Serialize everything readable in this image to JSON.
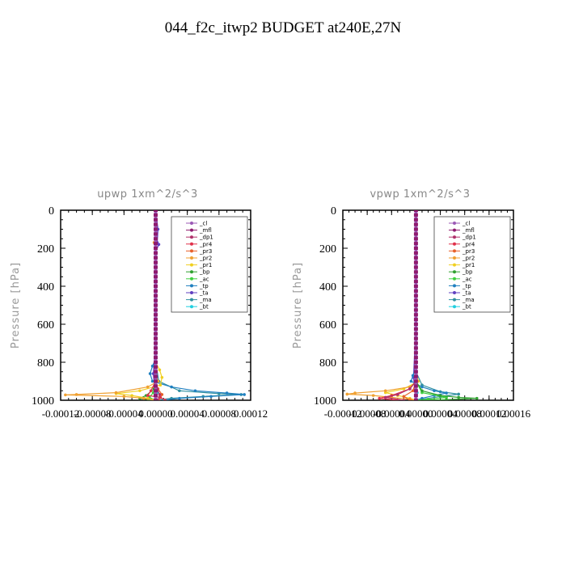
{
  "title": "044_f2c_itwp2  BUDGET at240E,27N",
  "colors": {
    "_cl": "#9b59b6",
    "_mfl": "#8e1a6e",
    "_dp1": "#b0306a",
    "_pr4": "#e0304a",
    "_pr3": "#e8602a",
    "_pr2": "#f0a030",
    "_pr1": "#f0d020",
    "_bp": "#30a030",
    "_ac": "#40d040",
    "_tp": "#2080c0",
    "_ta": "#6040c0",
    "_ma": "#3090a0",
    "_bt": "#20d0e0"
  },
  "chart_data": [
    {
      "type": "line",
      "title": "upwp   1xm^2/s^3",
      "ylabel": "Pressure [hPa]",
      "xlim": [
        -0.00012,
        0.00012
      ],
      "ylim": [
        0,
        1000
      ],
      "y_inverted": true,
      "xticks": [
        "-0.00012",
        "-0.00008",
        "-0.00004",
        "0.00000",
        "0.00004",
        "0.00008",
        "0.00012"
      ],
      "yticks": [
        "0",
        "200",
        "400",
        "600",
        "800",
        "1000"
      ],
      "legend": [
        "_cl",
        "_mfl",
        "_dp1",
        "_pr4",
        "_pr3",
        "_pr2",
        "_pr1",
        "_bp",
        "_ac",
        "_tp",
        "_ta",
        "_ma",
        "_bt"
      ],
      "legend_position": "top-right",
      "series": [
        {
          "name": "_cl",
          "points": [
            [
              0,
              0
            ],
            [
              0,
              200
            ],
            [
              0,
              400
            ],
            [
              0,
              600
            ],
            [
              0,
              800
            ],
            [
              0,
              900
            ],
            [
              0,
              960
            ],
            [
              0,
              1000
            ]
          ]
        },
        {
          "name": "_mfl",
          "points": [
            [
              0,
              0
            ],
            [
              0,
              200
            ],
            [
              0,
              400
            ],
            [
              0,
              600
            ],
            [
              0,
              800
            ],
            [
              0,
              900
            ],
            [
              0,
              960
            ],
            [
              0,
              1000
            ]
          ]
        },
        {
          "name": "_dp1",
          "points": [
            [
              0,
              0
            ],
            [
              0,
              400
            ],
            [
              0,
              800
            ],
            [
              0,
              900
            ],
            [
              2e-06,
              940
            ],
            [
              5e-06,
              970
            ],
            [
              3e-06,
              1000
            ]
          ]
        },
        {
          "name": "_pr4",
          "points": [
            [
              0,
              0
            ],
            [
              0,
              500
            ],
            [
              0,
              900
            ],
            [
              -6e-06,
              950
            ],
            [
              -1e-05,
              975
            ],
            [
              6e-06,
              985
            ],
            [
              1.2e-05,
              1000
            ]
          ]
        },
        {
          "name": "_pr3",
          "points": [
            [
              0,
              0
            ],
            [
              0,
              900
            ],
            [
              3e-06,
              940
            ],
            [
              8e-06,
              970
            ],
            [
              4e-06,
              1000
            ]
          ]
        },
        {
          "name": "_pr2",
          "points": [
            [
              0,
              0
            ],
            [
              0,
              160
            ],
            [
              -2e-06,
              170
            ],
            [
              0,
              180
            ],
            [
              0,
              860
            ],
            [
              3e-06,
              900
            ],
            [
              -1e-05,
              930
            ],
            [
              -5e-05,
              960
            ],
            [
              -0.0001,
              970
            ],
            [
              -0.000114,
              972
            ],
            [
              -4e-05,
              980
            ],
            [
              -1.5e-05,
              990
            ],
            [
              0,
              1000
            ]
          ]
        },
        {
          "name": "_pr1",
          "points": [
            [
              0,
              0
            ],
            [
              0,
              800
            ],
            [
              5e-06,
              840
            ],
            [
              8e-06,
              880
            ],
            [
              6e-06,
              920
            ],
            [
              -2e-05,
              950
            ],
            [
              -5e-05,
              965
            ],
            [
              -3e-05,
              975
            ],
            [
              -1e-05,
              990
            ],
            [
              0,
              1000
            ]
          ]
        },
        {
          "name": "_bp",
          "points": [
            [
              0,
              0
            ],
            [
              0,
              900
            ],
            [
              -2e-06,
              940
            ],
            [
              -1.2e-05,
              975
            ],
            [
              -2e-05,
              990
            ],
            [
              -5e-06,
              1000
            ]
          ]
        },
        {
          "name": "_ac",
          "points": [
            [
              0,
              0
            ],
            [
              0,
              900
            ],
            [
              -3e-06,
              960
            ],
            [
              -8e-06,
              985
            ],
            [
              0,
              1000
            ]
          ]
        },
        {
          "name": "_tp",
          "points": [
            [
              0,
              0
            ],
            [
              0,
              780
            ],
            [
              -4e-06,
              820
            ],
            [
              -7e-06,
              860
            ],
            [
              -4e-06,
              900
            ],
            [
              2e-05,
              930
            ],
            [
              5e-05,
              950
            ],
            [
              9e-05,
              962
            ],
            [
              0.000112,
              970
            ],
            [
              7e-05,
              980
            ],
            [
              3e-05,
              990
            ],
            [
              1e-05,
              1000
            ]
          ]
        },
        {
          "name": "_ta",
          "points": [
            [
              0,
              0
            ],
            [
              3e-06,
              100
            ],
            [
              2e-06,
              170
            ],
            [
              4e-06,
              180
            ],
            [
              0,
              220
            ],
            [
              0,
              700
            ],
            [
              -3e-06,
              860
            ],
            [
              0,
              1000
            ]
          ]
        },
        {
          "name": "_ma",
          "points": [
            [
              0,
              0
            ],
            [
              0,
              800
            ],
            [
              4e-06,
              900
            ],
            [
              3e-05,
              950
            ],
            [
              8e-05,
              965
            ],
            [
              0.000108,
              970
            ],
            [
              6e-05,
              980
            ],
            [
              2e-05,
              990
            ],
            [
              0,
              1000
            ]
          ]
        },
        {
          "name": "_bt",
          "points": [
            [
              0,
              0
            ],
            [
              0,
              900
            ],
            [
              2e-06,
              960
            ],
            [
              0,
              1000
            ]
          ]
        }
      ]
    },
    {
      "type": "line",
      "title": "vpwp   1xm^2/s^3",
      "ylabel": "Pressure [hPa]",
      "xlim": [
        -0.00012,
        0.00016
      ],
      "ylim": [
        0,
        1000
      ],
      "y_inverted": true,
      "xticks": [
        "-0.00012",
        "-0.00008",
        "-0.00004",
        "0.00000",
        "0.00004",
        "0.00008",
        "0.00012",
        "0.00016"
      ],
      "yticks": [
        "0",
        "200",
        "400",
        "600",
        "800",
        "1000"
      ],
      "legend": [
        "_cl",
        "_mfl",
        "_dp1",
        "_pr4",
        "_pr3",
        "_pr2",
        "_pr1",
        "_bp",
        "_ac",
        "_tp",
        "_ta",
        "_ma",
        "_bt"
      ],
      "legend_position": "top-right",
      "series": [
        {
          "name": "_cl",
          "points": [
            [
              0,
              0
            ],
            [
              0,
              200
            ],
            [
              0,
              400
            ],
            [
              0,
              600
            ],
            [
              0,
              800
            ],
            [
              0,
              900
            ],
            [
              0,
              960
            ],
            [
              0,
              1000
            ]
          ]
        },
        {
          "name": "_mfl",
          "points": [
            [
              0,
              0
            ],
            [
              0,
              200
            ],
            [
              0,
              400
            ],
            [
              0,
              600
            ],
            [
              0,
              800
            ],
            [
              0,
              900
            ],
            [
              0,
              960
            ],
            [
              0,
              1000
            ]
          ]
        },
        {
          "name": "_dp1",
          "points": [
            [
              0,
              0
            ],
            [
              0,
              900
            ],
            [
              -1e-05,
              940
            ],
            [
              -3e-05,
              970
            ],
            [
              -5e-05,
              985
            ],
            [
              -2e-05,
              1000
            ]
          ]
        },
        {
          "name": "_pr4",
          "points": [
            [
              0,
              0
            ],
            [
              0,
              900
            ],
            [
              -1e-05,
              940
            ],
            [
              -4e-05,
              975
            ],
            [
              -6e-05,
              990
            ],
            [
              -3e-05,
              1000
            ]
          ]
        },
        {
          "name": "_pr3",
          "points": [
            [
              0,
              0
            ],
            [
              0,
              900
            ],
            [
              -5e-06,
              950
            ],
            [
              -2e-05,
              980
            ],
            [
              -1e-05,
              1000
            ]
          ]
        },
        {
          "name": "_pr2",
          "points": [
            [
              0,
              0
            ],
            [
              0,
              860
            ],
            [
              3e-06,
              900
            ],
            [
              -1e-05,
              930
            ],
            [
              -5e-05,
              950
            ],
            [
              -0.0001,
              962
            ],
            [
              -0.000113,
              968
            ],
            [
              -7e-05,
              975
            ],
            [
              -4e-05,
              985
            ],
            [
              -1e-05,
              995
            ],
            [
              0,
              1000
            ]
          ]
        },
        {
          "name": "_pr1",
          "points": [
            [
              0,
              0
            ],
            [
              0,
              850
            ],
            [
              4e-06,
              900
            ],
            [
              -2e-05,
              940
            ],
            [
              -5e-05,
              960
            ],
            [
              -3e-05,
              975
            ],
            [
              -1e-05,
              990
            ],
            [
              0,
              1000
            ]
          ]
        },
        {
          "name": "_bp",
          "points": [
            [
              0,
              0
            ],
            [
              0,
              900
            ],
            [
              1e-05,
              950
            ],
            [
              4e-05,
              975
            ],
            [
              7e-05,
              985
            ],
            [
              0.0001,
              990
            ],
            [
              5e-05,
              997
            ],
            [
              1e-05,
              1000
            ]
          ]
        },
        {
          "name": "_ac",
          "points": [
            [
              0,
              0
            ],
            [
              0,
              900
            ],
            [
              1e-05,
              960
            ],
            [
              5e-05,
              985
            ],
            [
              2e-05,
              995
            ],
            [
              0,
              1000
            ]
          ]
        },
        {
          "name": "_tp",
          "points": [
            [
              0,
              0
            ],
            [
              0,
              820
            ],
            [
              -5e-06,
              870
            ],
            [
              -8e-06,
              900
            ],
            [
              1e-05,
              930
            ],
            [
              3e-05,
              950
            ],
            [
              5e-05,
              962
            ],
            [
              3e-05,
              975
            ],
            [
              1e-05,
              990
            ],
            [
              0,
              1000
            ]
          ]
        },
        {
          "name": "_ta",
          "points": [
            [
              0,
              0
            ],
            [
              0,
              600
            ],
            [
              -4e-06,
              880
            ],
            [
              0,
              1000
            ]
          ]
        },
        {
          "name": "_ma",
          "points": [
            [
              0,
              0
            ],
            [
              0,
              850
            ],
            [
              1e-05,
              920
            ],
            [
              4e-05,
              955
            ],
            [
              7e-05,
              968
            ],
            [
              4e-05,
              980
            ],
            [
              1e-05,
              995
            ],
            [
              0,
              1000
            ]
          ]
        },
        {
          "name": "_bt",
          "points": [
            [
              0,
              0
            ],
            [
              0,
              900
            ],
            [
              2e-06,
              960
            ],
            [
              0,
              1000
            ]
          ]
        }
      ]
    }
  ]
}
